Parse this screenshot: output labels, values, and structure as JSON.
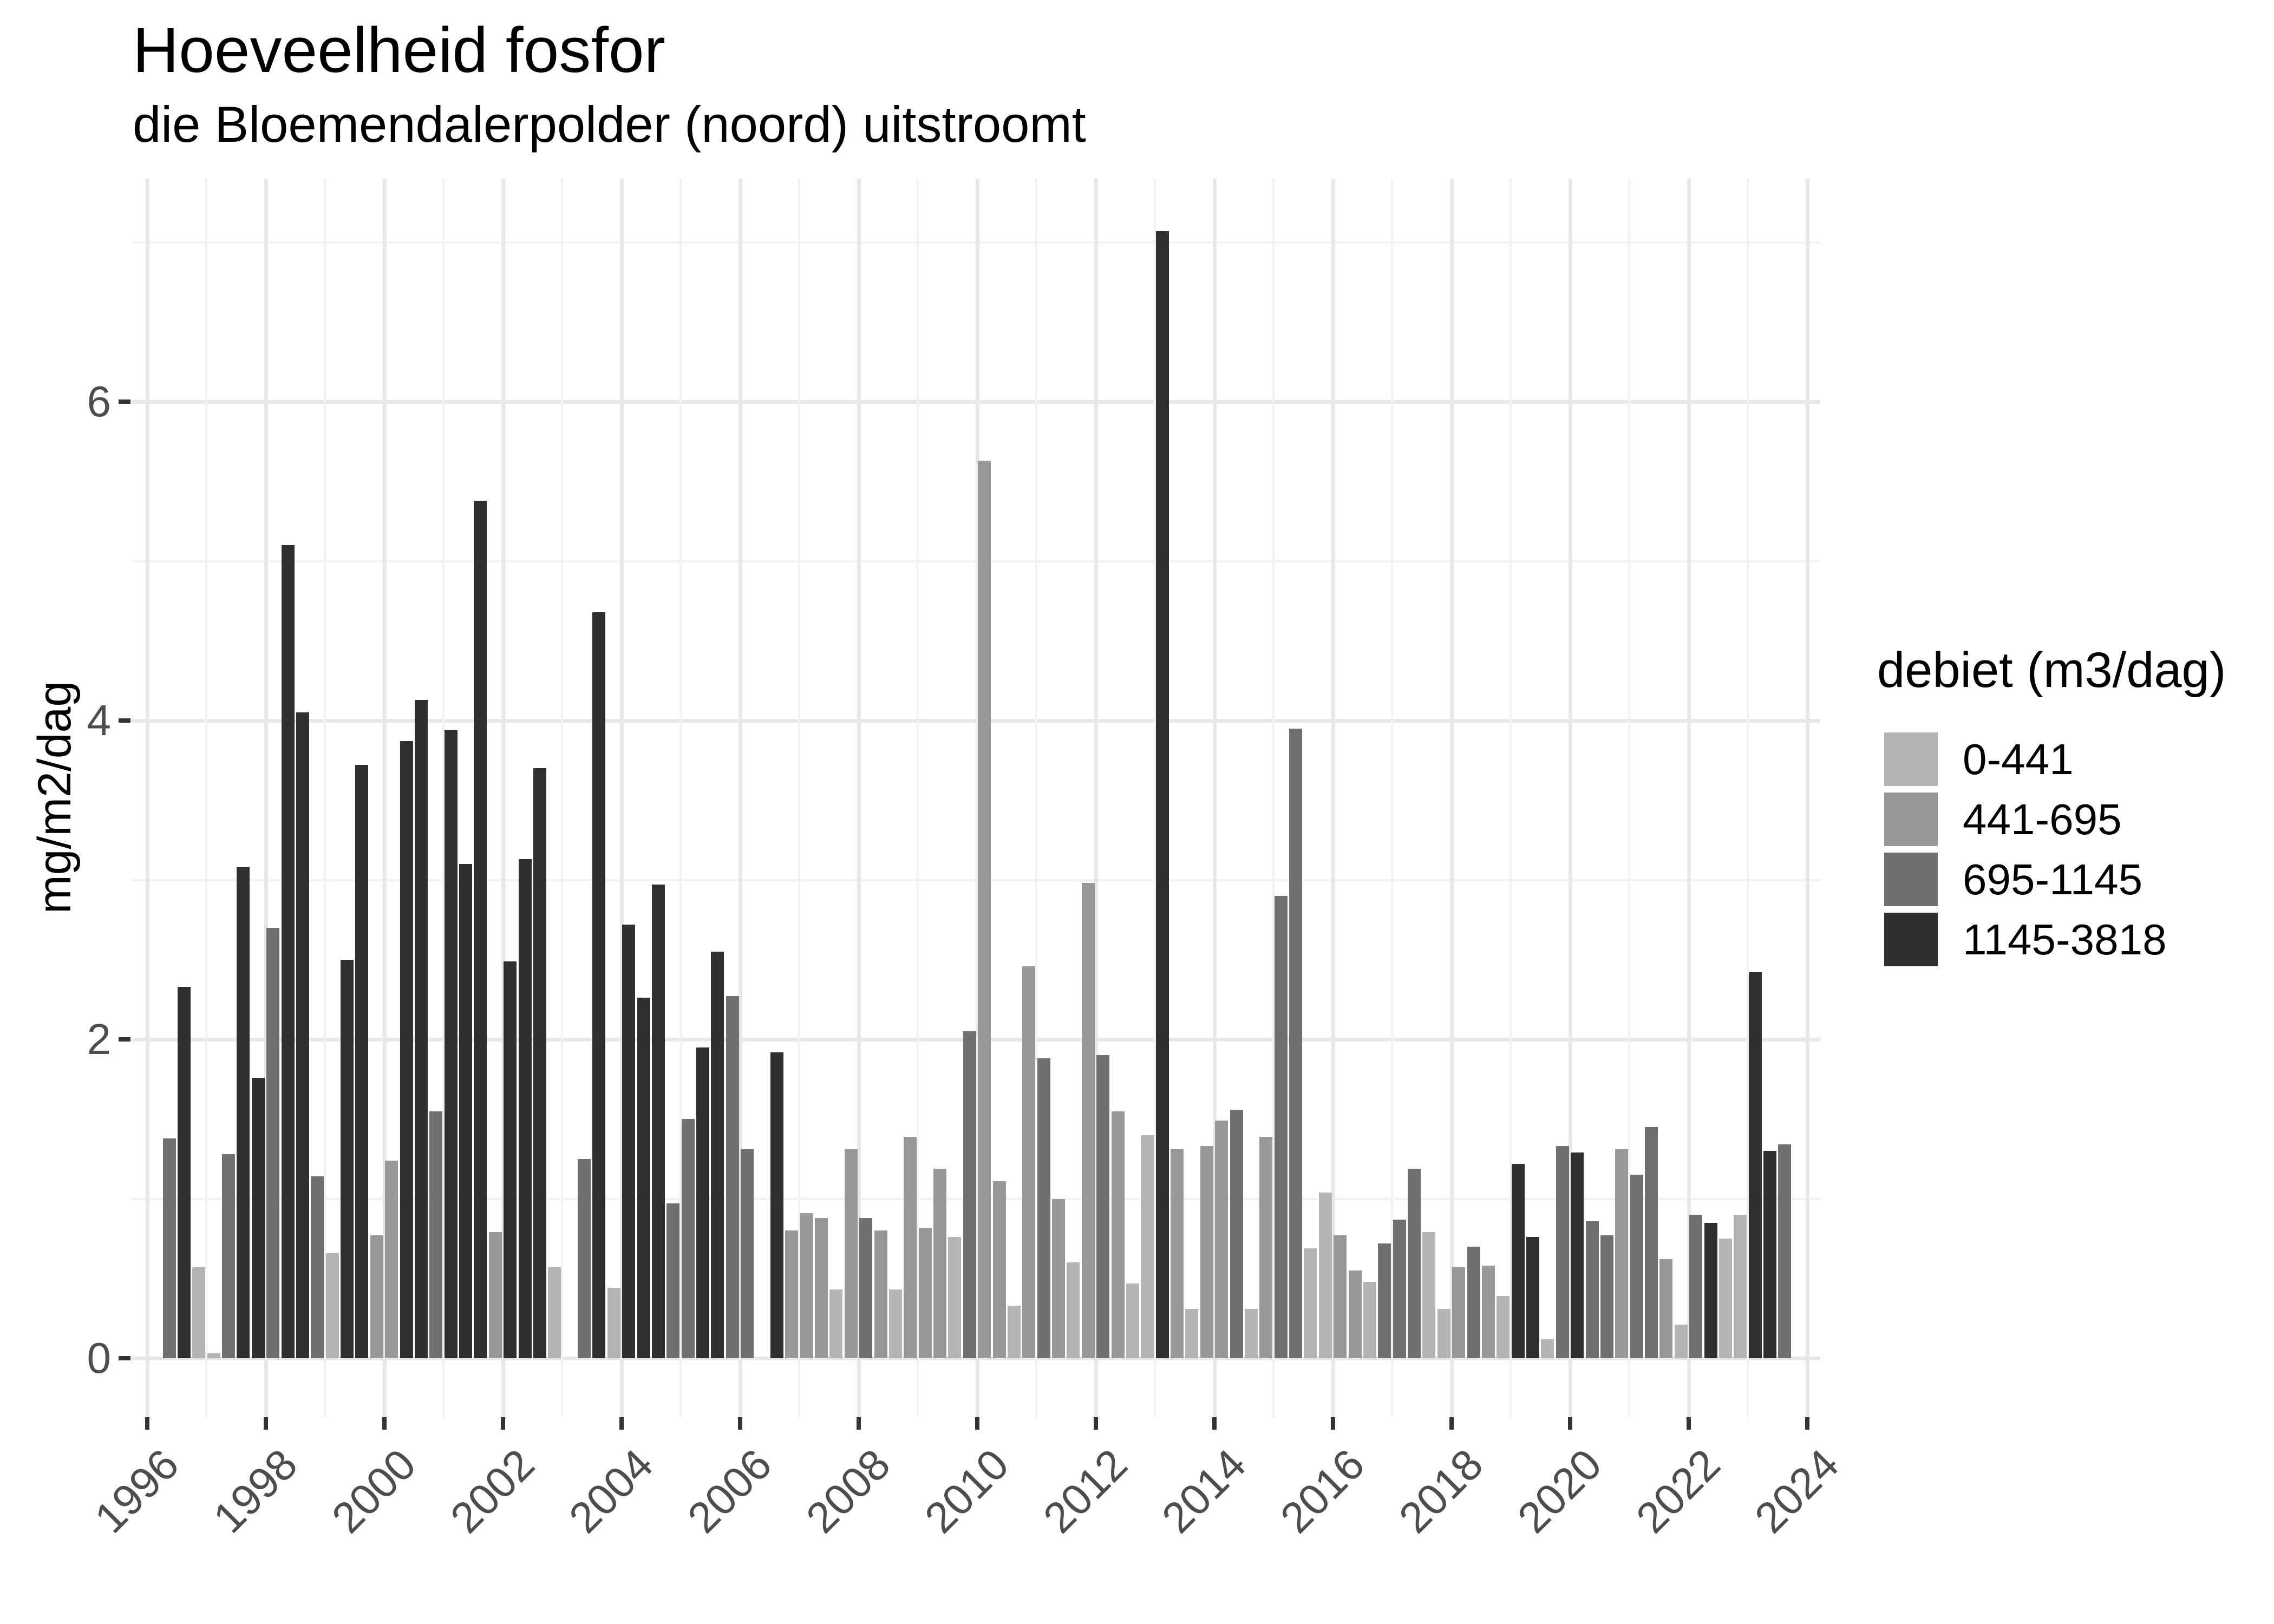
{
  "header": {
    "title": "Hoeveelheid fosfor",
    "subtitle": "die Bloemendalerpolder (noord) uitstroomt"
  },
  "y_axis": {
    "label": "mg/m2/dag",
    "tick_labels": [
      "0",
      "2",
      "4",
      "6"
    ],
    "tick_values": [
      0,
      2,
      4,
      6
    ]
  },
  "x_axis": {
    "tick_labels": [
      "1996",
      "1998",
      "2000",
      "2002",
      "2004",
      "2006",
      "2008",
      "2010",
      "2012",
      "2014",
      "2016",
      "2018",
      "2020",
      "2022",
      "2024"
    ]
  },
  "legend": {
    "title": "debiet (m3/dag)",
    "items": [
      {
        "label": "0-441",
        "color": "#b4b4b4"
      },
      {
        "label": "441-695",
        "color": "#989898"
      },
      {
        "label": "695-1145",
        "color": "#707070"
      },
      {
        "label": "1145-3818",
        "color": "#2f2f2f"
      }
    ]
  },
  "chart_data": {
    "type": "bar",
    "title": "Hoeveelheid fosfor",
    "subtitle": "die Bloemendalerpolder (noord) uitstroomt",
    "xlabel": "",
    "ylabel": "mg/m2/dag",
    "ylim": [
      0,
      7.4
    ],
    "xlim": [
      1995.75,
      2024.25
    ],
    "y_ticks": [
      0,
      2,
      4,
      6
    ],
    "x_ticks": [
      1996,
      1998,
      2000,
      2002,
      2004,
      2006,
      2008,
      2010,
      2012,
      2014,
      2016,
      2018,
      2020,
      2022,
      2024
    ],
    "grid": true,
    "legend_position": "right",
    "legend_title": "debiet (m3/dag)",
    "palette": {
      "0-441": "#b4b4b4",
      "441-695": "#989898",
      "695-1145": "#707070",
      "1145-3818": "#2f2f2f"
    },
    "bars": [
      {
        "year": 1996,
        "quarter": 2,
        "debiet": "695-1145",
        "value": 1.38
      },
      {
        "year": 1996,
        "quarter": 3,
        "debiet": "1145-3818",
        "value": 2.33
      },
      {
        "year": 1996,
        "quarter": 4,
        "debiet": "0-441",
        "value": 0.57
      },
      {
        "year": 1997,
        "quarter": 1,
        "debiet": "0-441",
        "value": 0.03
      },
      {
        "year": 1997,
        "quarter": 2,
        "debiet": "695-1145",
        "value": 1.28
      },
      {
        "year": 1997,
        "quarter": 3,
        "debiet": "1145-3818",
        "value": 3.08
      },
      {
        "year": 1997,
        "quarter": 4,
        "debiet": "1145-3818",
        "value": 1.76
      },
      {
        "year": 1998,
        "quarter": 1,
        "debiet": "695-1145",
        "value": 2.7
      },
      {
        "year": 1998,
        "quarter": 2,
        "debiet": "1145-3818",
        "value": 5.1
      },
      {
        "year": 1998,
        "quarter": 3,
        "debiet": "1145-3818",
        "value": 4.05
      },
      {
        "year": 1998,
        "quarter": 4,
        "debiet": "695-1145",
        "value": 1.14
      },
      {
        "year": 1999,
        "quarter": 1,
        "debiet": "0-441",
        "value": 0.66
      },
      {
        "year": 1999,
        "quarter": 2,
        "debiet": "1145-3818",
        "value": 2.5
      },
      {
        "year": 1999,
        "quarter": 3,
        "debiet": "1145-3818",
        "value": 3.72
      },
      {
        "year": 1999,
        "quarter": 4,
        "debiet": "441-695",
        "value": 0.77
      },
      {
        "year": 2000,
        "quarter": 1,
        "debiet": "441-695",
        "value": 1.24
      },
      {
        "year": 2000,
        "quarter": 2,
        "debiet": "1145-3818",
        "value": 3.87
      },
      {
        "year": 2000,
        "quarter": 3,
        "debiet": "1145-3818",
        "value": 4.13
      },
      {
        "year": 2000,
        "quarter": 4,
        "debiet": "695-1145",
        "value": 1.55
      },
      {
        "year": 2001,
        "quarter": 1,
        "debiet": "1145-3818",
        "value": 3.94
      },
      {
        "year": 2001,
        "quarter": 2,
        "debiet": "1145-3818",
        "value": 3.1
      },
      {
        "year": 2001,
        "quarter": 3,
        "debiet": "1145-3818",
        "value": 5.38
      },
      {
        "year": 2001,
        "quarter": 4,
        "debiet": "441-695",
        "value": 0.79
      },
      {
        "year": 2002,
        "quarter": 1,
        "debiet": "1145-3818",
        "value": 2.49
      },
      {
        "year": 2002,
        "quarter": 2,
        "debiet": "1145-3818",
        "value": 3.13
      },
      {
        "year": 2002,
        "quarter": 3,
        "debiet": "1145-3818",
        "value": 3.7
      },
      {
        "year": 2002,
        "quarter": 4,
        "debiet": "0-441",
        "value": 0.57
      },
      {
        "year": 2003,
        "quarter": 2,
        "debiet": "695-1145",
        "value": 1.25
      },
      {
        "year": 2003,
        "quarter": 3,
        "debiet": "1145-3818",
        "value": 4.68
      },
      {
        "year": 2003,
        "quarter": 4,
        "debiet": "0-441",
        "value": 0.44
      },
      {
        "year": 2004,
        "quarter": 1,
        "debiet": "1145-3818",
        "value": 2.72
      },
      {
        "year": 2004,
        "quarter": 2,
        "debiet": "1145-3818",
        "value": 2.26
      },
      {
        "year": 2004,
        "quarter": 3,
        "debiet": "1145-3818",
        "value": 2.97
      },
      {
        "year": 2004,
        "quarter": 4,
        "debiet": "695-1145",
        "value": 0.97
      },
      {
        "year": 2005,
        "quarter": 1,
        "debiet": "695-1145",
        "value": 1.5
      },
      {
        "year": 2005,
        "quarter": 2,
        "debiet": "1145-3818",
        "value": 1.95
      },
      {
        "year": 2005,
        "quarter": 3,
        "debiet": "1145-3818",
        "value": 2.55
      },
      {
        "year": 2005,
        "quarter": 4,
        "debiet": "695-1145",
        "value": 2.27
      },
      {
        "year": 2006,
        "quarter": 1,
        "debiet": "695-1145",
        "value": 1.31
      },
      {
        "year": 2006,
        "quarter": 3,
        "debiet": "1145-3818",
        "value": 1.92
      },
      {
        "year": 2006,
        "quarter": 4,
        "debiet": "441-695",
        "value": 0.8
      },
      {
        "year": 2007,
        "quarter": 1,
        "debiet": "441-695",
        "value": 0.91
      },
      {
        "year": 2007,
        "quarter": 2,
        "debiet": "441-695",
        "value": 0.88
      },
      {
        "year": 2007,
        "quarter": 3,
        "debiet": "0-441",
        "value": 0.43
      },
      {
        "year": 2007,
        "quarter": 4,
        "debiet": "441-695",
        "value": 1.31
      },
      {
        "year": 2008,
        "quarter": 1,
        "debiet": "695-1145",
        "value": 0.88
      },
      {
        "year": 2008,
        "quarter": 2,
        "debiet": "441-695",
        "value": 0.8
      },
      {
        "year": 2008,
        "quarter": 3,
        "debiet": "0-441",
        "value": 0.43
      },
      {
        "year": 2008,
        "quarter": 4,
        "debiet": "441-695",
        "value": 1.39
      },
      {
        "year": 2009,
        "quarter": 1,
        "debiet": "441-695",
        "value": 0.82
      },
      {
        "year": 2009,
        "quarter": 2,
        "debiet": "441-695",
        "value": 1.19
      },
      {
        "year": 2009,
        "quarter": 3,
        "debiet": "0-441",
        "value": 0.76
      },
      {
        "year": 2009,
        "quarter": 4,
        "debiet": "695-1145",
        "value": 2.05
      },
      {
        "year": 2010,
        "quarter": 1,
        "debiet": "441-695",
        "value": 5.63
      },
      {
        "year": 2010,
        "quarter": 2,
        "debiet": "441-695",
        "value": 1.11
      },
      {
        "year": 2010,
        "quarter": 3,
        "debiet": "0-441",
        "value": 0.33
      },
      {
        "year": 2010,
        "quarter": 4,
        "debiet": "441-695",
        "value": 2.46
      },
      {
        "year": 2011,
        "quarter": 1,
        "debiet": "695-1145",
        "value": 1.88
      },
      {
        "year": 2011,
        "quarter": 2,
        "debiet": "441-695",
        "value": 1.0
      },
      {
        "year": 2011,
        "quarter": 3,
        "debiet": "0-441",
        "value": 0.6
      },
      {
        "year": 2011,
        "quarter": 4,
        "debiet": "441-695",
        "value": 2.98
      },
      {
        "year": 2012,
        "quarter": 1,
        "debiet": "695-1145",
        "value": 1.9
      },
      {
        "year": 2012,
        "quarter": 2,
        "debiet": "441-695",
        "value": 1.55
      },
      {
        "year": 2012,
        "quarter": 3,
        "debiet": "0-441",
        "value": 0.47
      },
      {
        "year": 2012,
        "quarter": 4,
        "debiet": "0-441",
        "value": 1.4
      },
      {
        "year": 2013,
        "quarter": 1,
        "debiet": "1145-3818",
        "value": 7.07
      },
      {
        "year": 2013,
        "quarter": 2,
        "debiet": "441-695",
        "value": 1.31
      },
      {
        "year": 2013,
        "quarter": 3,
        "debiet": "0-441",
        "value": 0.31
      },
      {
        "year": 2013,
        "quarter": 4,
        "debiet": "441-695",
        "value": 1.33
      },
      {
        "year": 2014,
        "quarter": 1,
        "debiet": "441-695",
        "value": 1.49
      },
      {
        "year": 2014,
        "quarter": 2,
        "debiet": "695-1145",
        "value": 1.56
      },
      {
        "year": 2014,
        "quarter": 3,
        "debiet": "0-441",
        "value": 0.31
      },
      {
        "year": 2014,
        "quarter": 4,
        "debiet": "441-695",
        "value": 1.39
      },
      {
        "year": 2015,
        "quarter": 1,
        "debiet": "695-1145",
        "value": 2.9
      },
      {
        "year": 2015,
        "quarter": 2,
        "debiet": "695-1145",
        "value": 3.95
      },
      {
        "year": 2015,
        "quarter": 3,
        "debiet": "0-441",
        "value": 0.69
      },
      {
        "year": 2015,
        "quarter": 4,
        "debiet": "0-441",
        "value": 1.04
      },
      {
        "year": 2016,
        "quarter": 1,
        "debiet": "441-695",
        "value": 0.77
      },
      {
        "year": 2016,
        "quarter": 2,
        "debiet": "441-695",
        "value": 0.55
      },
      {
        "year": 2016,
        "quarter": 3,
        "debiet": "0-441",
        "value": 0.48
      },
      {
        "year": 2016,
        "quarter": 4,
        "debiet": "695-1145",
        "value": 0.72
      },
      {
        "year": 2017,
        "quarter": 1,
        "debiet": "695-1145",
        "value": 0.87
      },
      {
        "year": 2017,
        "quarter": 2,
        "debiet": "695-1145",
        "value": 1.19
      },
      {
        "year": 2017,
        "quarter": 3,
        "debiet": "0-441",
        "value": 0.79
      },
      {
        "year": 2017,
        "quarter": 4,
        "debiet": "0-441",
        "value": 0.31
      },
      {
        "year": 2018,
        "quarter": 1,
        "debiet": "441-695",
        "value": 0.57
      },
      {
        "year": 2018,
        "quarter": 2,
        "debiet": "695-1145",
        "value": 0.7
      },
      {
        "year": 2018,
        "quarter": 3,
        "debiet": "441-695",
        "value": 0.58
      },
      {
        "year": 2018,
        "quarter": 4,
        "debiet": "0-441",
        "value": 0.39
      },
      {
        "year": 2019,
        "quarter": 1,
        "debiet": "1145-3818",
        "value": 1.22
      },
      {
        "year": 2019,
        "quarter": 2,
        "debiet": "1145-3818",
        "value": 0.76
      },
      {
        "year": 2019,
        "quarter": 3,
        "debiet": "0-441",
        "value": 0.12
      },
      {
        "year": 2019,
        "quarter": 4,
        "debiet": "695-1145",
        "value": 1.33
      },
      {
        "year": 2020,
        "quarter": 1,
        "debiet": "1145-3818",
        "value": 1.29
      },
      {
        "year": 2020,
        "quarter": 2,
        "debiet": "695-1145",
        "value": 0.86
      },
      {
        "year": 2020,
        "quarter": 3,
        "debiet": "695-1145",
        "value": 0.77
      },
      {
        "year": 2020,
        "quarter": 4,
        "debiet": "441-695",
        "value": 1.31
      },
      {
        "year": 2021,
        "quarter": 1,
        "debiet": "695-1145",
        "value": 1.15
      },
      {
        "year": 2021,
        "quarter": 2,
        "debiet": "695-1145",
        "value": 1.45
      },
      {
        "year": 2021,
        "quarter": 3,
        "debiet": "441-695",
        "value": 0.62
      },
      {
        "year": 2021,
        "quarter": 4,
        "debiet": "0-441",
        "value": 0.21
      },
      {
        "year": 2022,
        "quarter": 1,
        "debiet": "695-1145",
        "value": 0.9
      },
      {
        "year": 2022,
        "quarter": 2,
        "debiet": "1145-3818",
        "value": 0.85
      },
      {
        "year": 2022,
        "quarter": 3,
        "debiet": "0-441",
        "value": 0.75
      },
      {
        "year": 2022,
        "quarter": 4,
        "debiet": "0-441",
        "value": 0.9
      },
      {
        "year": 2023,
        "quarter": 1,
        "debiet": "1145-3818",
        "value": 2.42
      },
      {
        "year": 2023,
        "quarter": 2,
        "debiet": "1145-3818",
        "value": 1.3
      },
      {
        "year": 2023,
        "quarter": 3,
        "debiet": "695-1145",
        "value": 1.34
      }
    ]
  }
}
